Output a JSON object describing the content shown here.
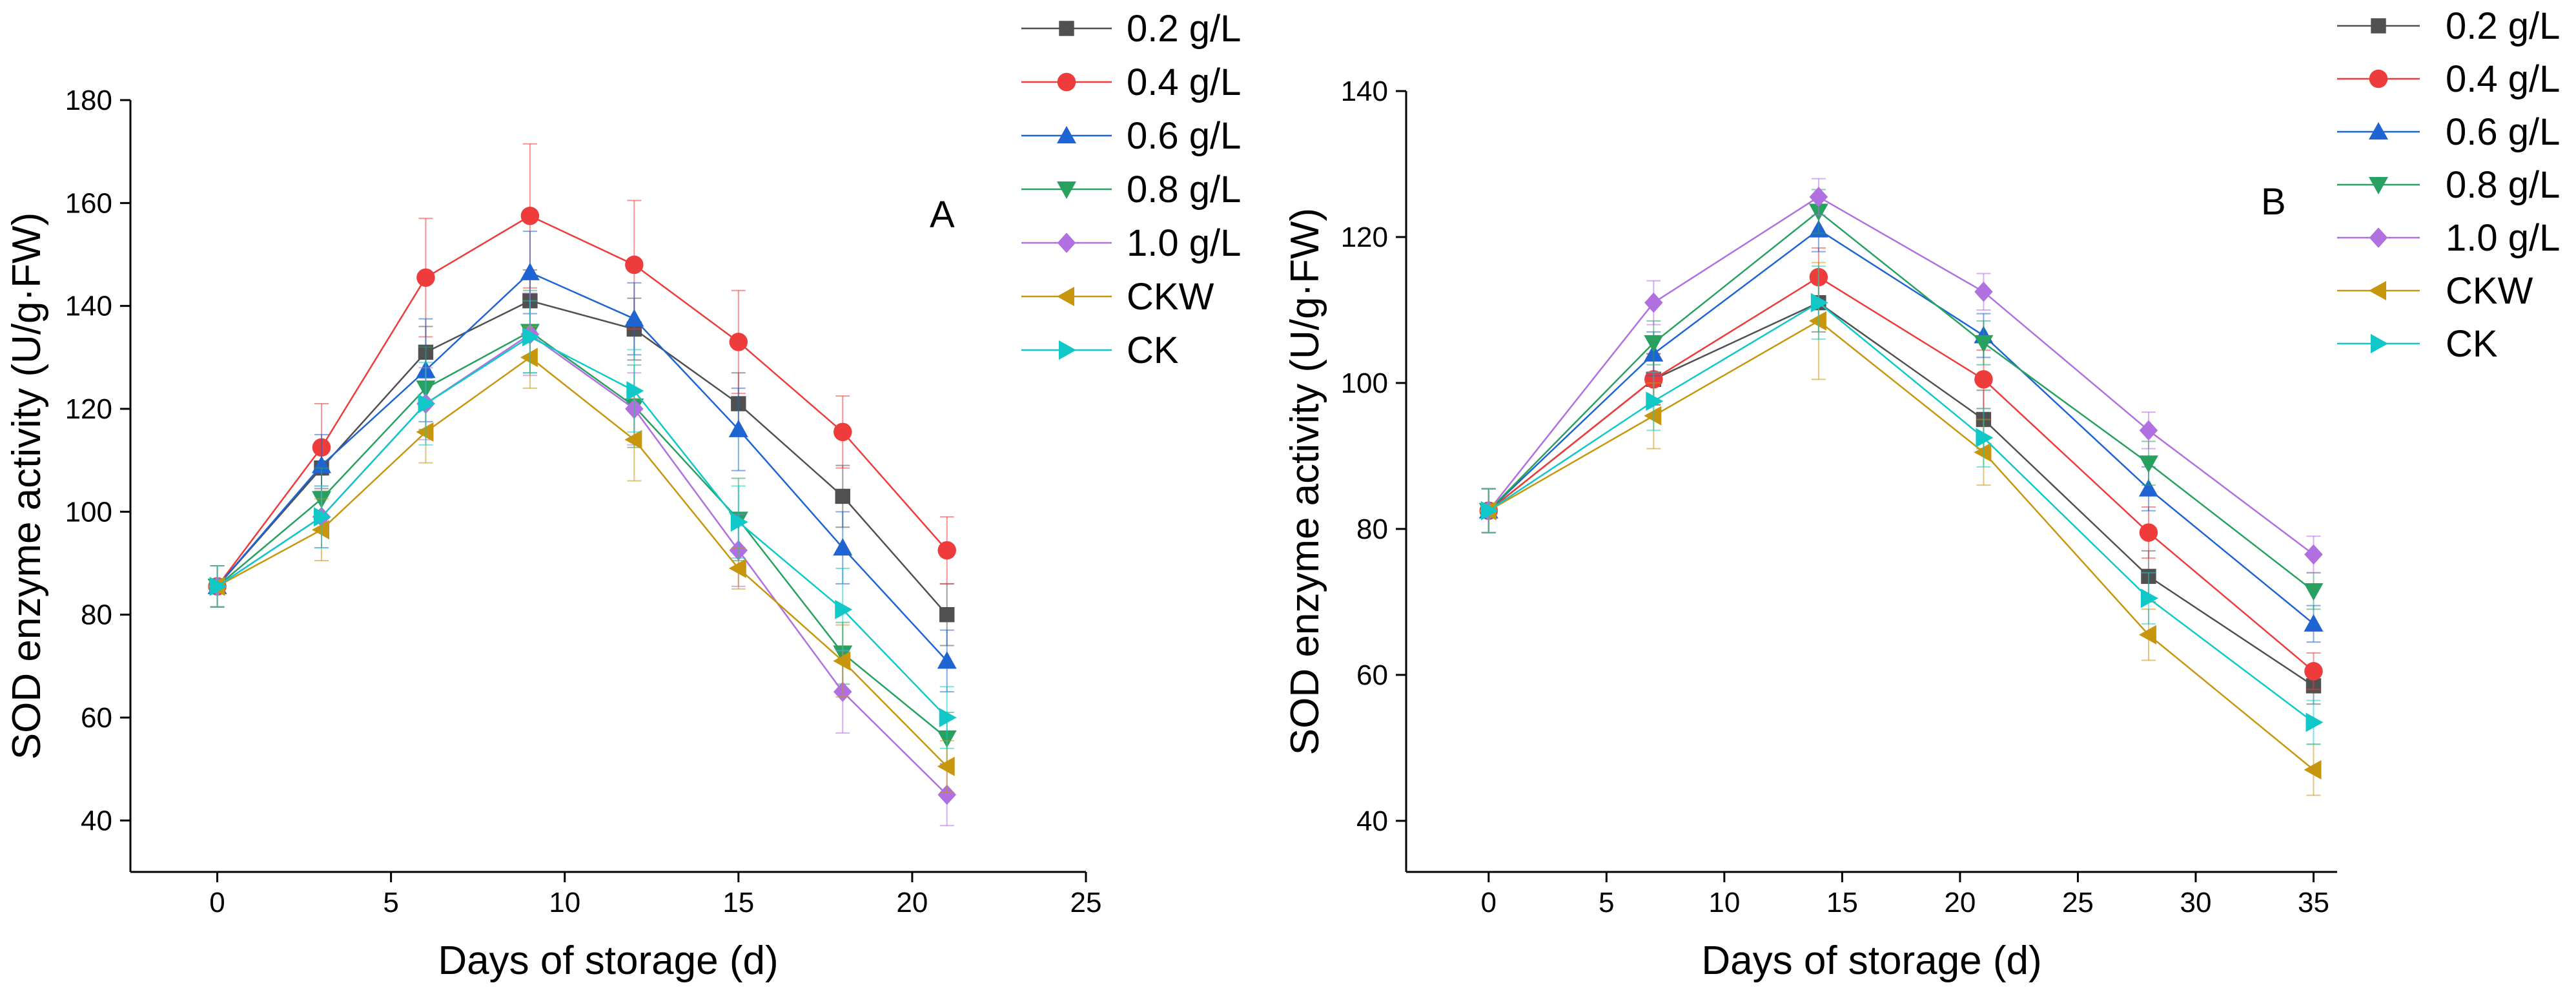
{
  "chart_data": [
    {
      "type": "line",
      "panel_label": "A",
      "xlabel": "Days of storage (d)",
      "ylabel": "SOD enzyme activity (U/g·FW)",
      "xlim": [
        -2.5,
        25
      ],
      "ylim": [
        30,
        180
      ],
      "xticks": [
        0,
        5,
        10,
        15,
        20,
        25
      ],
      "yticks": [
        40,
        60,
        80,
        100,
        120,
        140,
        160,
        180
      ],
      "x": [
        0,
        3,
        6,
        9,
        12,
        15,
        18,
        21
      ],
      "series": [
        {
          "name": "0.2 g/L",
          "marker": "square",
          "color": "#505050",
          "values": [
            85.5,
            108.5,
            131,
            141,
            135.5,
            121,
            103,
            80
          ],
          "errors": [
            4,
            4,
            5,
            6,
            6,
            6,
            6,
            6
          ]
        },
        {
          "name": "0.4 g/L",
          "marker": "circle",
          "color": "#ee3b3b",
          "values": [
            85.5,
            112.5,
            145.5,
            157.5,
            148,
            133,
            115.5,
            92.5
          ],
          "errors": [
            4,
            8.5,
            11.5,
            14,
            12.5,
            10,
            7,
            6.5
          ]
        },
        {
          "name": "0.6 g/L",
          "marker": "triangle-up",
          "color": "#1e64d2",
          "values": [
            85.5,
            109,
            127.5,
            146.5,
            137.5,
            116,
            93,
            71
          ],
          "errors": [
            4,
            6,
            10,
            8,
            7,
            8,
            7,
            6
          ]
        },
        {
          "name": "0.8 g/L",
          "marker": "triangle-down",
          "color": "#27a060",
          "values": [
            85.5,
            102.5,
            124,
            135,
            120.5,
            98.5,
            72.5,
            56
          ],
          "errors": [
            4,
            6,
            8,
            8,
            8,
            8,
            6,
            5
          ]
        },
        {
          "name": "1.0 g/L",
          "marker": "diamond",
          "color": "#b070e0",
          "values": [
            85.5,
            99,
            121,
            134.5,
            120,
            92.5,
            65,
            45
          ],
          "errors": [
            4,
            6,
            7,
            8,
            7,
            7,
            8,
            6
          ]
        },
        {
          "name": "CKW",
          "marker": "triangle-left",
          "color": "#c8960c",
          "values": [
            85.5,
            96.5,
            115.5,
            130,
            114,
            89,
            71,
            50.5
          ],
          "errors": [
            4,
            6,
            6,
            6,
            8,
            4,
            7,
            5
          ]
        },
        {
          "name": "CK",
          "marker": "triangle-right",
          "color": "#10c8c8",
          "values": [
            85.5,
            99,
            121,
            134,
            123.5,
            98,
            81,
            60
          ],
          "errors": [
            4,
            6,
            8,
            7,
            8,
            7,
            8,
            6
          ]
        }
      ]
    },
    {
      "type": "line",
      "panel_label": "B",
      "xlabel": "Days of storage (d)",
      "ylabel": "SOD enzyme activity (U/g·FW)",
      "xlim": [
        -3.5,
        36
      ],
      "ylim": [
        33,
        140
      ],
      "xticks": [
        0,
        5,
        10,
        15,
        20,
        25,
        30,
        35
      ],
      "yticks": [
        40,
        60,
        80,
        100,
        120,
        140
      ],
      "x": [
        0,
        7,
        14,
        21,
        28,
        35
      ],
      "series": [
        {
          "name": "0.2 g/L",
          "marker": "square",
          "color": "#505050",
          "values": [
            82.5,
            100.5,
            111,
            95,
            73.5,
            58.5
          ],
          "errors": [
            3,
            3.5,
            4,
            4,
            3.5,
            2.5
          ]
        },
        {
          "name": "0.4 g/L",
          "marker": "circle",
          "color": "#ee3b3b",
          "values": [
            82.5,
            100.5,
            114.5,
            100.5,
            79.5,
            60.5
          ],
          "errors": [
            3,
            3.5,
            4,
            4,
            3.5,
            2.5
          ]
        },
        {
          "name": "0.6 g/L",
          "marker": "triangle-up",
          "color": "#1e64d2",
          "values": [
            82.5,
            104,
            121,
            106.5,
            85.5,
            67
          ],
          "errors": [
            3,
            3,
            3,
            3,
            3,
            2.5
          ]
        },
        {
          "name": "0.8 g/L",
          "marker": "triangle-down",
          "color": "#27a060",
          "values": [
            82.5,
            105.5,
            123.5,
            105.5,
            89,
            71.5
          ],
          "errors": [
            3,
            3,
            3,
            3,
            3,
            2.5
          ]
        },
        {
          "name": "1.0 g/L",
          "marker": "diamond",
          "color": "#b070e0",
          "values": [
            82.5,
            111,
            125.5,
            112.5,
            93.5,
            76.5
          ],
          "errors": [
            3,
            3,
            2.5,
            2.5,
            2.5,
            2.5
          ]
        },
        {
          "name": "CKW",
          "marker": "triangle-left",
          "color": "#c8960c",
          "values": [
            82.5,
            95.5,
            108.5,
            90.5,
            65.5,
            47
          ],
          "errors": [
            3,
            4.5,
            8,
            4.5,
            3.5,
            3.5
          ]
        },
        {
          "name": "CK",
          "marker": "triangle-right",
          "color": "#10c8c8",
          "values": [
            82.5,
            97.5,
            111,
            92.5,
            70.5,
            53.5
          ],
          "errors": [
            3,
            4,
            5,
            4,
            3.5,
            3
          ]
        }
      ]
    }
  ]
}
